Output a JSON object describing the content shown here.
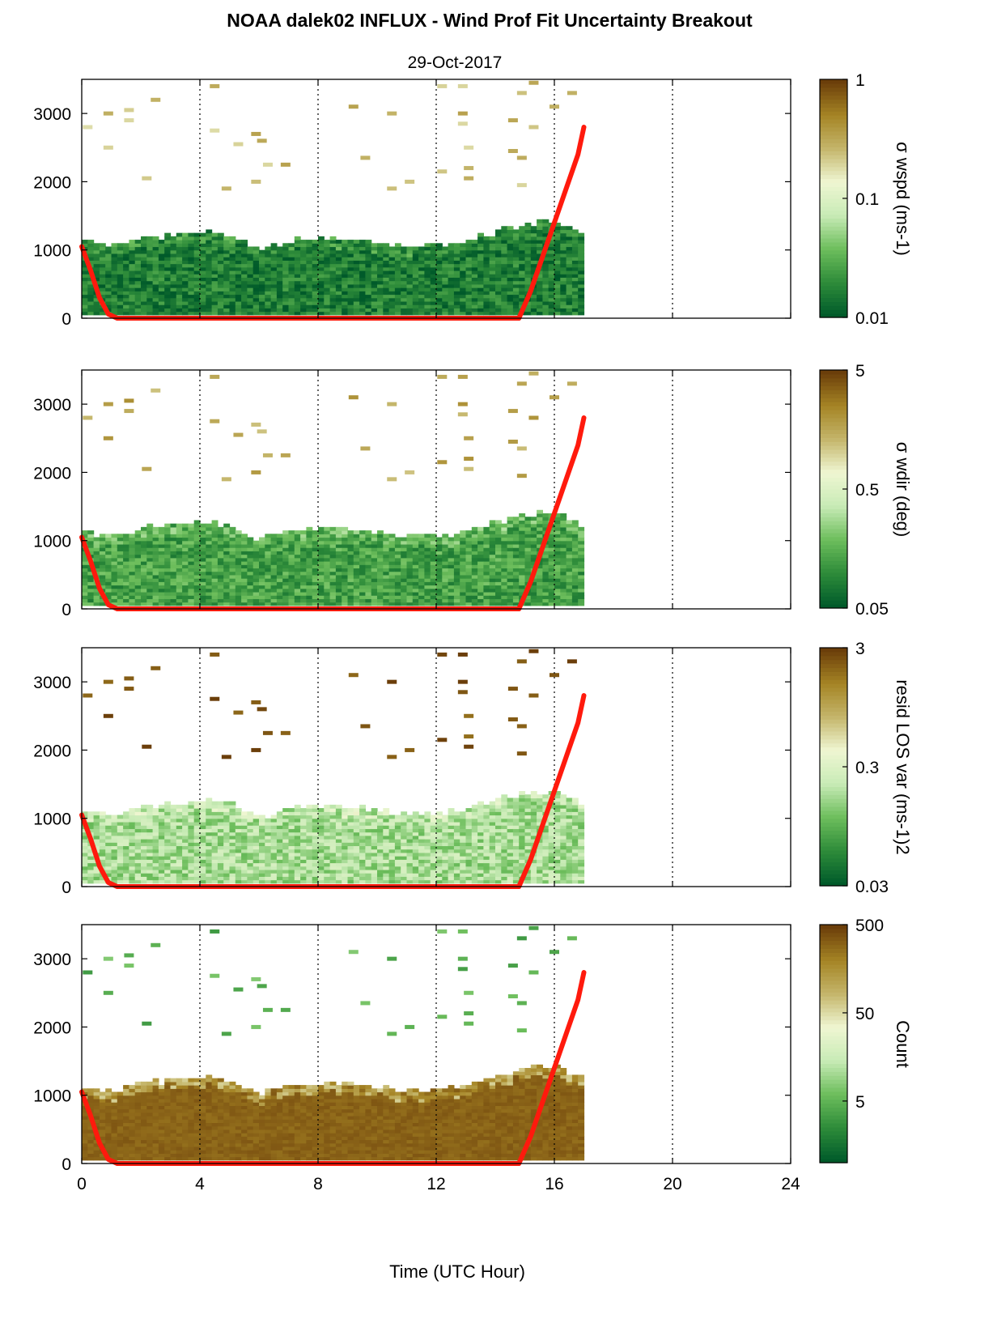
{
  "figure": {
    "title": "NOAA dalek02 INFLUX - Wind Prof Fit Uncertainty Breakout",
    "date": "29-Oct-2017",
    "xlabel": "Time (UTC Hour)"
  },
  "colors": {
    "boundary_line": "#ff1a0d",
    "colormap": [
      "#005a2a",
      "#2e8c3a",
      "#6dbe5c",
      "#c8ebb6",
      "#eff6d2",
      "#c4b56a",
      "#a58424",
      "#6b3e0a"
    ]
  },
  "chart_data": [
    {
      "type": "heatmap",
      "name": "sigma_wspd",
      "xlim": [
        0,
        24
      ],
      "xticks": [
        0,
        4,
        8,
        12,
        16,
        20,
        24
      ],
      "ylim": [
        0,
        3500
      ],
      "yticks": [
        0,
        1000,
        2000,
        3000
      ],
      "grid": "vertical dotted at 4, 8, 12, 16, 20",
      "colorbar": {
        "scale": "log",
        "min": 0.01,
        "max": 1,
        "ticks": [
          "1",
          "0.1",
          "0.01"
        ],
        "label": "σ wspd (ms-1)"
      },
      "data_extent_hours": [
        0,
        17
      ],
      "dense_region_top_m": [
        [
          0,
          1100
        ],
        [
          1,
          1050
        ],
        [
          2,
          1150
        ],
        [
          3,
          1200
        ],
        [
          4,
          1250
        ],
        [
          5,
          1200
        ],
        [
          6,
          1000
        ],
        [
          7,
          1100
        ],
        [
          8,
          1150
        ],
        [
          9,
          1150
        ],
        [
          10,
          1100
        ],
        [
          11,
          1050
        ],
        [
          12,
          1050
        ],
        [
          13,
          1100
        ],
        [
          14,
          1250
        ],
        [
          15,
          1350
        ],
        [
          16,
          1400
        ],
        [
          17,
          1200
        ]
      ],
      "dense_level": 0.1,
      "sparse_points": [
        [
          0.2,
          2800
        ],
        [
          0.9,
          3000
        ],
        [
          0.9,
          2500
        ],
        [
          1.6,
          3050
        ],
        [
          1.6,
          2900
        ],
        [
          2.2,
          2050
        ],
        [
          2.5,
          3200
        ],
        [
          4.5,
          3400
        ],
        [
          4.5,
          2750
        ],
        [
          4.9,
          1900
        ],
        [
          5.3,
          2550
        ],
        [
          5.9,
          2700
        ],
        [
          5.9,
          2000
        ],
        [
          6.1,
          2600
        ],
        [
          6.3,
          2250
        ],
        [
          6.9,
          2250
        ],
        [
          9.2,
          3100
        ],
        [
          9.6,
          2350
        ],
        [
          10.5,
          3000
        ],
        [
          10.5,
          1900
        ],
        [
          11.1,
          2000
        ],
        [
          12.2,
          3400
        ],
        [
          12.2,
          2150
        ],
        [
          12.9,
          3400
        ],
        [
          12.9,
          3000
        ],
        [
          12.9,
          2850
        ],
        [
          13.1,
          2500
        ],
        [
          13.1,
          2200
        ],
        [
          13.1,
          2050
        ],
        [
          14.6,
          2900
        ],
        [
          14.6,
          2450
        ],
        [
          14.9,
          2350
        ],
        [
          14.9,
          1950
        ],
        [
          14.9,
          3300
        ],
        [
          15.3,
          2800
        ],
        [
          15.3,
          3450
        ],
        [
          16.0,
          3100
        ],
        [
          16.6,
          3300
        ]
      ],
      "sparse_level": 0.7
    },
    {
      "type": "heatmap",
      "name": "sigma_wdir",
      "xlim": [
        0,
        24
      ],
      "xticks": [
        0,
        4,
        8,
        12,
        16,
        20,
        24
      ],
      "ylim": [
        0,
        3500
      ],
      "yticks": [
        0,
        1000,
        2000,
        3000
      ],
      "grid": "vertical dotted at 4, 8, 12, 16, 20",
      "colorbar": {
        "scale": "log",
        "min": 0.05,
        "max": 5,
        "ticks": [
          "5",
          "0.5",
          "0.05"
        ],
        "label": "σ wdir (deg)"
      },
      "data_extent_hours": [
        0,
        17
      ],
      "dense_region_top_m": [
        [
          0,
          1100
        ],
        [
          1,
          1050
        ],
        [
          2,
          1150
        ],
        [
          3,
          1200
        ],
        [
          4,
          1250
        ],
        [
          5,
          1200
        ],
        [
          6,
          1000
        ],
        [
          7,
          1100
        ],
        [
          8,
          1150
        ],
        [
          9,
          1150
        ],
        [
          10,
          1100
        ],
        [
          11,
          1050
        ],
        [
          12,
          1050
        ],
        [
          13,
          1100
        ],
        [
          14,
          1250
        ],
        [
          15,
          1350
        ],
        [
          16,
          1400
        ],
        [
          17,
          1200
        ]
      ],
      "dense_level": 0.2,
      "sparse_points": [
        [
          0.2,
          2800
        ],
        [
          0.9,
          3000
        ],
        [
          0.9,
          2500
        ],
        [
          1.6,
          3050
        ],
        [
          1.6,
          2900
        ],
        [
          2.2,
          2050
        ],
        [
          2.5,
          3200
        ],
        [
          4.5,
          3400
        ],
        [
          4.5,
          2750
        ],
        [
          4.9,
          1900
        ],
        [
          5.3,
          2550
        ],
        [
          5.9,
          2700
        ],
        [
          5.9,
          2000
        ],
        [
          6.1,
          2600
        ],
        [
          6.3,
          2250
        ],
        [
          6.9,
          2250
        ],
        [
          9.2,
          3100
        ],
        [
          9.6,
          2350
        ],
        [
          10.5,
          3000
        ],
        [
          10.5,
          1900
        ],
        [
          11.1,
          2000
        ],
        [
          12.2,
          3400
        ],
        [
          12.2,
          2150
        ],
        [
          12.9,
          3400
        ],
        [
          12.9,
          3000
        ],
        [
          12.9,
          2850
        ],
        [
          13.1,
          2500
        ],
        [
          13.1,
          2200
        ],
        [
          13.1,
          2050
        ],
        [
          14.6,
          2900
        ],
        [
          14.6,
          2450
        ],
        [
          14.9,
          2350
        ],
        [
          14.9,
          1950
        ],
        [
          14.9,
          3300
        ],
        [
          15.3,
          2800
        ],
        [
          15.3,
          3450
        ],
        [
          16.0,
          3100
        ],
        [
          16.6,
          3300
        ]
      ],
      "sparse_level": 0.75
    },
    {
      "type": "heatmap",
      "name": "resid_los_var",
      "xlim": [
        0,
        24
      ],
      "xticks": [
        0,
        4,
        8,
        12,
        16,
        20,
        24
      ],
      "ylim": [
        0,
        3500
      ],
      "yticks": [
        0,
        1000,
        2000,
        3000
      ],
      "grid": "vertical dotted at 4, 8, 12, 16, 20",
      "colorbar": {
        "scale": "log",
        "min": 0.03,
        "max": 3,
        "ticks": [
          "3",
          "0.3",
          "0.03"
        ],
        "label": "resid LOS var (ms-1)2"
      },
      "data_extent_hours": [
        0,
        17
      ],
      "dense_region_top_m": [
        [
          0,
          1100
        ],
        [
          1,
          1050
        ],
        [
          2,
          1150
        ],
        [
          3,
          1200
        ],
        [
          4,
          1250
        ],
        [
          5,
          1200
        ],
        [
          6,
          1000
        ],
        [
          7,
          1100
        ],
        [
          8,
          1150
        ],
        [
          9,
          1150
        ],
        [
          10,
          1100
        ],
        [
          11,
          1050
        ],
        [
          12,
          1050
        ],
        [
          13,
          1100
        ],
        [
          14,
          1250
        ],
        [
          15,
          1350
        ],
        [
          16,
          1400
        ],
        [
          17,
          1200
        ]
      ],
      "dense_level": 0.38,
      "sparse_points": [
        [
          0.2,
          2800
        ],
        [
          0.9,
          3000
        ],
        [
          0.9,
          2500
        ],
        [
          1.6,
          3050
        ],
        [
          1.6,
          2900
        ],
        [
          2.2,
          2050
        ],
        [
          2.5,
          3200
        ],
        [
          4.5,
          3400
        ],
        [
          4.5,
          2750
        ],
        [
          4.9,
          1900
        ],
        [
          5.3,
          2550
        ],
        [
          5.9,
          2700
        ],
        [
          5.9,
          2000
        ],
        [
          6.1,
          2600
        ],
        [
          6.3,
          2250
        ],
        [
          6.9,
          2250
        ],
        [
          9.2,
          3100
        ],
        [
          9.6,
          2350
        ],
        [
          10.5,
          3000
        ],
        [
          10.5,
          1900
        ],
        [
          11.1,
          2000
        ],
        [
          12.2,
          3400
        ],
        [
          12.2,
          2150
        ],
        [
          12.9,
          3400
        ],
        [
          12.9,
          3000
        ],
        [
          12.9,
          2850
        ],
        [
          13.1,
          2500
        ],
        [
          13.1,
          2200
        ],
        [
          13.1,
          2050
        ],
        [
          14.6,
          2900
        ],
        [
          14.6,
          2450
        ],
        [
          14.9,
          2350
        ],
        [
          14.9,
          1950
        ],
        [
          14.9,
          3300
        ],
        [
          15.3,
          2800
        ],
        [
          15.3,
          3450
        ],
        [
          16.0,
          3100
        ],
        [
          16.6,
          3300
        ]
      ],
      "sparse_level": 0.97
    },
    {
      "type": "heatmap",
      "name": "count",
      "xlim": [
        0,
        24
      ],
      "xticks": [
        0,
        4,
        8,
        12,
        16,
        20,
        24
      ],
      "ylim": [
        0,
        3500
      ],
      "yticks": [
        0,
        1000,
        2000,
        3000
      ],
      "grid": "vertical dotted at 4, 8, 12, 16, 20",
      "colorbar": {
        "scale": "log",
        "min": 1,
        "max": 500,
        "ticks": [
          "500",
          "50",
          "5"
        ],
        "label": "Count"
      },
      "data_extent_hours": [
        0,
        17
      ],
      "dense_region_top_m": [
        [
          0,
          1100
        ],
        [
          1,
          1050
        ],
        [
          2,
          1150
        ],
        [
          3,
          1200
        ],
        [
          4,
          1250
        ],
        [
          5,
          1200
        ],
        [
          6,
          1000
        ],
        [
          7,
          1100
        ],
        [
          8,
          1150
        ],
        [
          9,
          1150
        ],
        [
          10,
          1100
        ],
        [
          11,
          1050
        ],
        [
          12,
          1050
        ],
        [
          13,
          1100
        ],
        [
          14,
          1250
        ],
        [
          15,
          1350
        ],
        [
          16,
          1400
        ],
        [
          17,
          1200
        ]
      ],
      "dense_level": 0.95,
      "sparse_points": [
        [
          0.2,
          2800
        ],
        [
          0.9,
          3000
        ],
        [
          0.9,
          2500
        ],
        [
          1.6,
          3050
        ],
        [
          1.6,
          2900
        ],
        [
          2.2,
          2050
        ],
        [
          2.5,
          3200
        ],
        [
          4.5,
          3400
        ],
        [
          4.5,
          2750
        ],
        [
          4.9,
          1900
        ],
        [
          5.3,
          2550
        ],
        [
          5.9,
          2700
        ],
        [
          5.9,
          2000
        ],
        [
          6.1,
          2600
        ],
        [
          6.3,
          2250
        ],
        [
          6.9,
          2250
        ],
        [
          9.2,
          3100
        ],
        [
          9.6,
          2350
        ],
        [
          10.5,
          3000
        ],
        [
          10.5,
          1900
        ],
        [
          11.1,
          2000
        ],
        [
          12.2,
          3400
        ],
        [
          12.2,
          2150
        ],
        [
          12.9,
          3400
        ],
        [
          12.9,
          3000
        ],
        [
          12.9,
          2850
        ],
        [
          13.1,
          2500
        ],
        [
          13.1,
          2200
        ],
        [
          13.1,
          2050
        ],
        [
          14.6,
          2900
        ],
        [
          14.6,
          2450
        ],
        [
          14.9,
          2350
        ],
        [
          14.9,
          1950
        ],
        [
          14.9,
          3300
        ],
        [
          15.3,
          2800
        ],
        [
          15.3,
          3450
        ],
        [
          16.0,
          3100
        ],
        [
          16.6,
          3300
        ]
      ],
      "sparse_level": 0.25
    }
  ],
  "boundary_layer_line": {
    "x": [
      0.0,
      0.3,
      0.6,
      0.9,
      1.2,
      2.0,
      4.0,
      8.0,
      12.0,
      14.8,
      15.2,
      15.6,
      16.0,
      16.4,
      16.8,
      17.0
    ],
    "y": [
      1050,
      700,
      300,
      60,
      0,
      0,
      0,
      0,
      0,
      0,
      400,
      900,
      1400,
      1900,
      2400,
      2800
    ]
  }
}
